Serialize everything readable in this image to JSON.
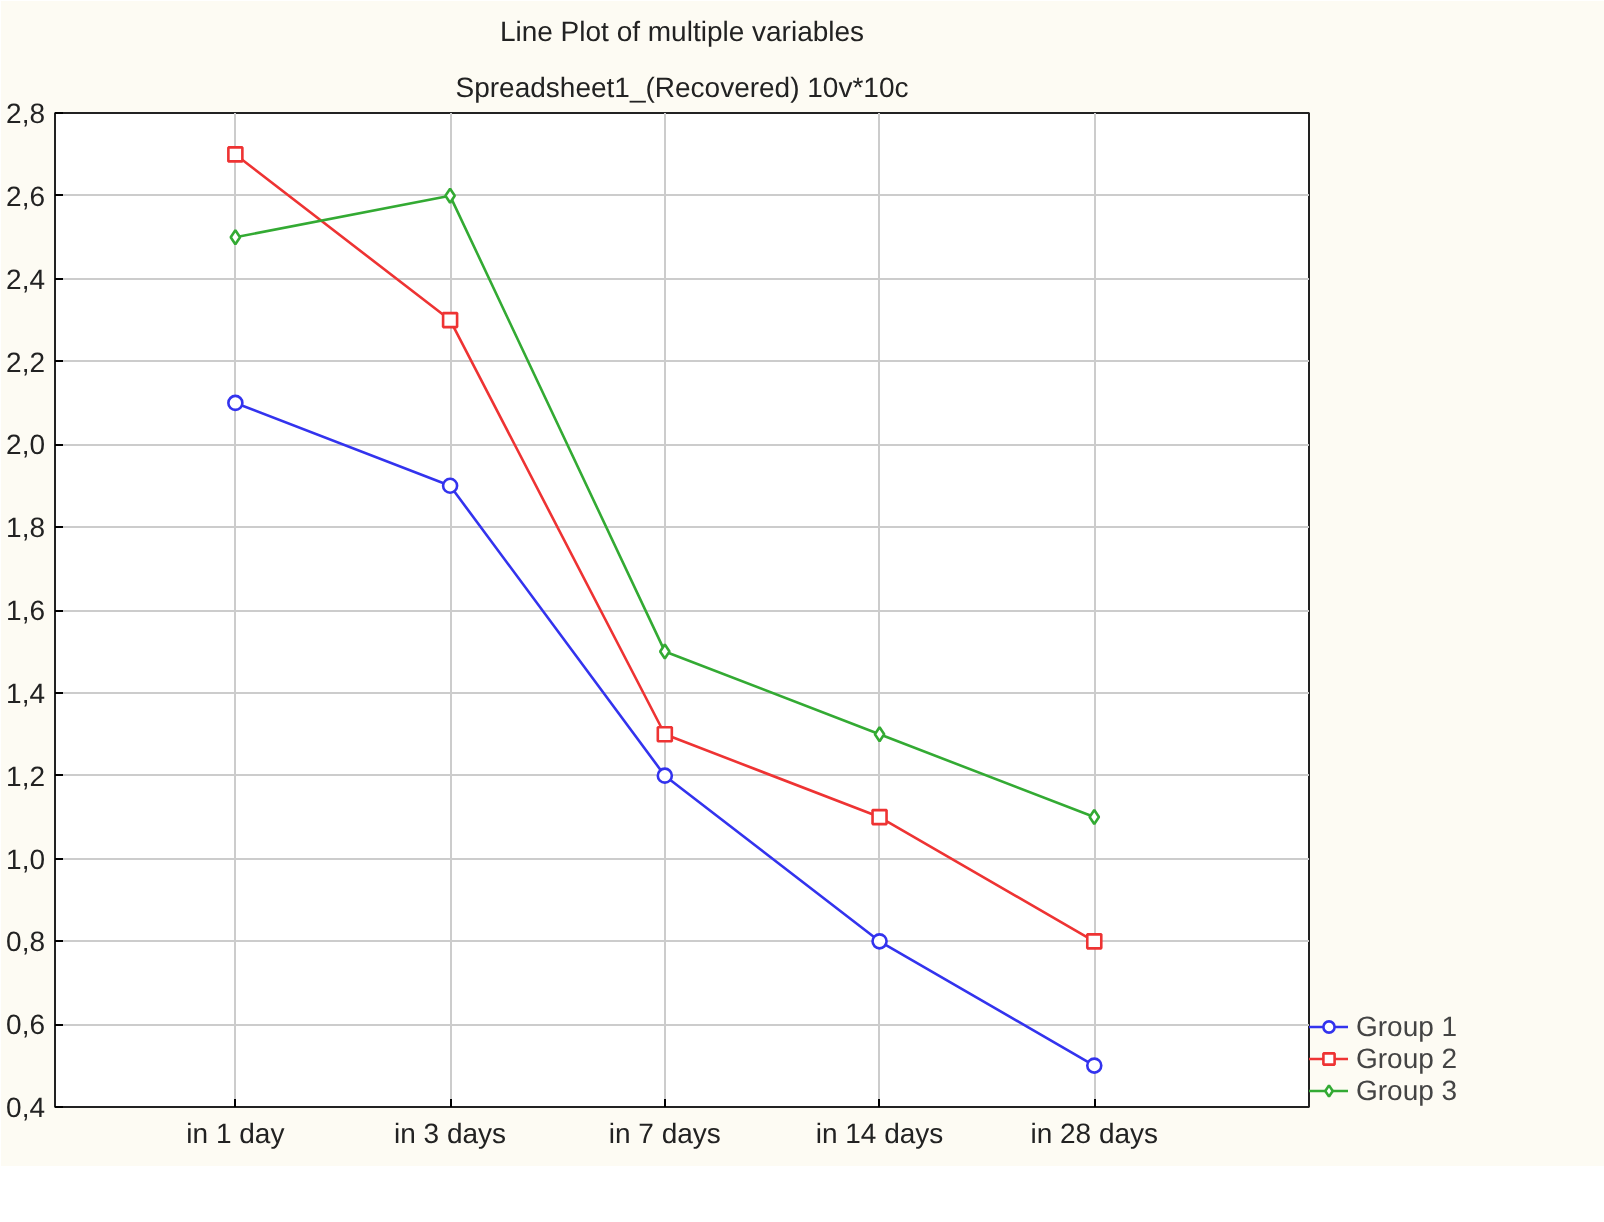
{
  "chart_data": {
    "type": "line",
    "title": "Line Plot of multiple variables",
    "subtitle": "Spreadsheet1_(Recovered) 10v*10c",
    "categories": [
      "in 1 day",
      "in 3 days",
      "in 7 days",
      "in 14 days",
      "in 28 days"
    ],
    "series": [
      {
        "name": "Group 1",
        "color": "#3333ee",
        "marker": "circle",
        "values": [
          2.1,
          1.9,
          1.2,
          0.8,
          0.5
        ]
      },
      {
        "name": "Group 2",
        "color": "#ee3333",
        "marker": "square",
        "values": [
          2.7,
          2.3,
          1.3,
          1.1,
          0.8
        ]
      },
      {
        "name": "Group 3",
        "color": "#33aa33",
        "marker": "diamond",
        "values": [
          2.5,
          2.6,
          1.5,
          1.3,
          1.1
        ]
      }
    ],
    "ylim": [
      0.4,
      2.8
    ],
    "yticks": [
      {
        "value": 0.4,
        "label": "0,4"
      },
      {
        "value": 0.6,
        "label": "0,6"
      },
      {
        "value": 0.8,
        "label": "0,8"
      },
      {
        "value": 1.0,
        "label": "1,0"
      },
      {
        "value": 1.2,
        "label": "1,2"
      },
      {
        "value": 1.4,
        "label": "1,4"
      },
      {
        "value": 1.6,
        "label": "1,6"
      },
      {
        "value": 1.8,
        "label": "1,8"
      },
      {
        "value": 2.0,
        "label": "2,0"
      },
      {
        "value": 2.2,
        "label": "2,2"
      },
      {
        "value": 2.4,
        "label": "2,4"
      },
      {
        "value": 2.6,
        "label": "2,6"
      },
      {
        "value": 2.8,
        "label": "2,8"
      }
    ],
    "grid": true,
    "legend": "bottom right",
    "line_style": "solid"
  }
}
